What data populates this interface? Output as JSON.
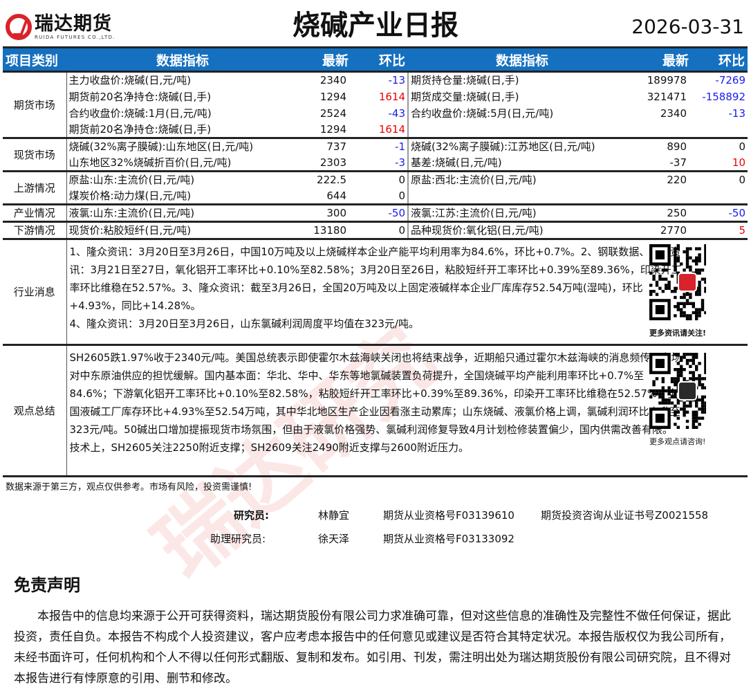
{
  "header": {
    "logo_cn": "瑞达期货",
    "logo_en": "RUIDA FUTURES CO.,LTD.",
    "title": "烧碱产业日报",
    "date": "2026-03-31"
  },
  "columns": {
    "category": "项目类别",
    "indicator": "数据指标",
    "latest": "最新",
    "change": "环比"
  },
  "sections": [
    {
      "category": "期货市场",
      "rows": [
        [
          "主力收盘价:烧碱(日,元/吨)",
          "2340",
          "-13",
          "期货持仓量:烧碱(日,手)",
          "189978",
          "-7269"
        ],
        [
          "期货前20名净持仓:烧碱(日,手)",
          "1294",
          "1614",
          "期货成交量:烧碱(日,手)",
          "321471",
          "-158892"
        ],
        [
          "合约收盘价:烧碱:1月(日,元/吨)",
          "2524",
          "-43",
          "合约收盘价:烧碱:5月(日,元/吨)",
          "2340",
          "-13"
        ],
        [
          "期货前20名净持仓:烧碱(日,手)",
          "1294",
          "1614",
          "",
          "",
          ""
        ]
      ]
    },
    {
      "category": "现货市场",
      "rows": [
        [
          "烧碱(32%离子膜碱):山东地区(日,元/吨)",
          "737",
          "-1",
          "烧碱(32%离子膜碱):江苏地区(日,元/吨)",
          "890",
          "0"
        ],
        [
          "山东地区32%烧碱折百价(日,元/吨)",
          "2303",
          "-3",
          "基差:烧碱(日,元/吨)",
          "-37",
          "10"
        ]
      ]
    },
    {
      "category": "上游情况",
      "rows": [
        [
          "原盐:山东:主流价(日,元/吨)",
          "222.5",
          "0",
          "原盐:西北:主流价(日,元/吨)",
          "220",
          "0"
        ],
        [
          "煤炭价格:动力煤(日,元/吨)",
          "644",
          "0",
          "",
          "",
          ""
        ]
      ]
    },
    {
      "category": "产业情况",
      "rows": [
        [
          "液氯:山东:主流价(日,元/吨)",
          "300",
          "-50",
          "液氯:江苏:主流价(日,元/吨)",
          "250",
          "-50"
        ]
      ]
    },
    {
      "category": "下游情况",
      "rows": [
        [
          "现货价:粘胶短纤(日,元/吨)",
          "13180",
          "0",
          "品种现货价:氧化铝(日,元/吨)",
          "2770",
          "5"
        ]
      ]
    }
  ],
  "news": {
    "category": "行业消息",
    "text": "1、隆众资讯：3月20日至3月26日，中国10万吨及以上烧碱样本企业产能平均利用率为84.6%，环比+0.7%。2、钢联数据、隆众资讯：3月21日至27日，氧化铝开工率环比+0.10%至82.58%；3月20日至26日，粘胶短纤开工率环比+0.39%至89.36%，印染开工率环比维稳在52.57%。3、隆众资讯：截至3月26日，全国20万吨及以上固定液碱样本企业厂库库存52.54万吨(湿吨)，环比+4.93%，同比+14.28%。",
    "text2": "4、隆众资讯：3月20日至3月26日，山东氯碱利润周度平均值在323元/吨。",
    "qr_caption": "更多资讯请关注!"
  },
  "opinion": {
    "category": "观点总结",
    "text": "SH2605跌1.97%收于2340元/吨。美国总统表示即使霍尔木兹海峡关闭也将结束战争，近期船只通过霍尔木兹海峡的消息频传，市场对中东原油供应的担忧缓解。国内基本面：华北、华中、华东等地氯碱装置负荷提升，全国烧碱平均产能利用率环比+0.7%至84.6%；下游氧化铝开工率环比+0.10%至82.58%，粘胶短纤开工率环比+0.39%至89.36%，印染开工率环比维稳在52.57%；全国液碱工厂库存环比+4.93%至52.54万吨，其中华北地区生产企业因看涨主动累库；山东烧碱、液氯价格上调，氯碱利润环比上升至323元/吨。50碱出口增加提振现货市场氛围，但由于液氯价格强势、氯碱利润修复导致4月计划检修装置偏少，国内供需改善有限。技术上，SH2605关注2250附近支撑；SH2609关注2490附近支撑与2600附近压力。",
    "qr_caption": "更多观点请咨询!"
  },
  "footnote": "数据来源于第三方，观点仅供参考。市场有风险，投资需谨慎!",
  "researchers": [
    {
      "role": "研究员:",
      "name": "林静宜",
      "cert1": "期货从业资格号F03139610",
      "cert2": "期货投资咨询从业证书号Z0021558"
    },
    {
      "role": "助理研究员:",
      "name": "徐天泽",
      "cert1": "期货从业资格号F03133092",
      "cert2": ""
    }
  ],
  "disclaimer": {
    "title": "免责声明",
    "text": "本报告中的信息均来源于公开可获得资料，瑞达期货股份有限公司力求准确可靠，但对这些信息的准确性及完整性不做任何保证，据此投资，责任自负。本报告不构成个人投资建议，客户应考虑本报告中的任何意见或建议是否符合其特定状况。本报告版权仅为我公司所有，未经书面许可，任何机构和个人不得以任何形式翻版、复制和发布。如引用、刊发，需注明出处为瑞达期货股份有限公司研究院，且不得对本报告进行有悖原意的引用、删节和修改。"
  },
  "watermark": "瑞达研究",
  "colors": {
    "header_bg": "#1570c0",
    "negative": "#1a1aee",
    "positive": "#e00000",
    "brand": "#d9232b"
  }
}
